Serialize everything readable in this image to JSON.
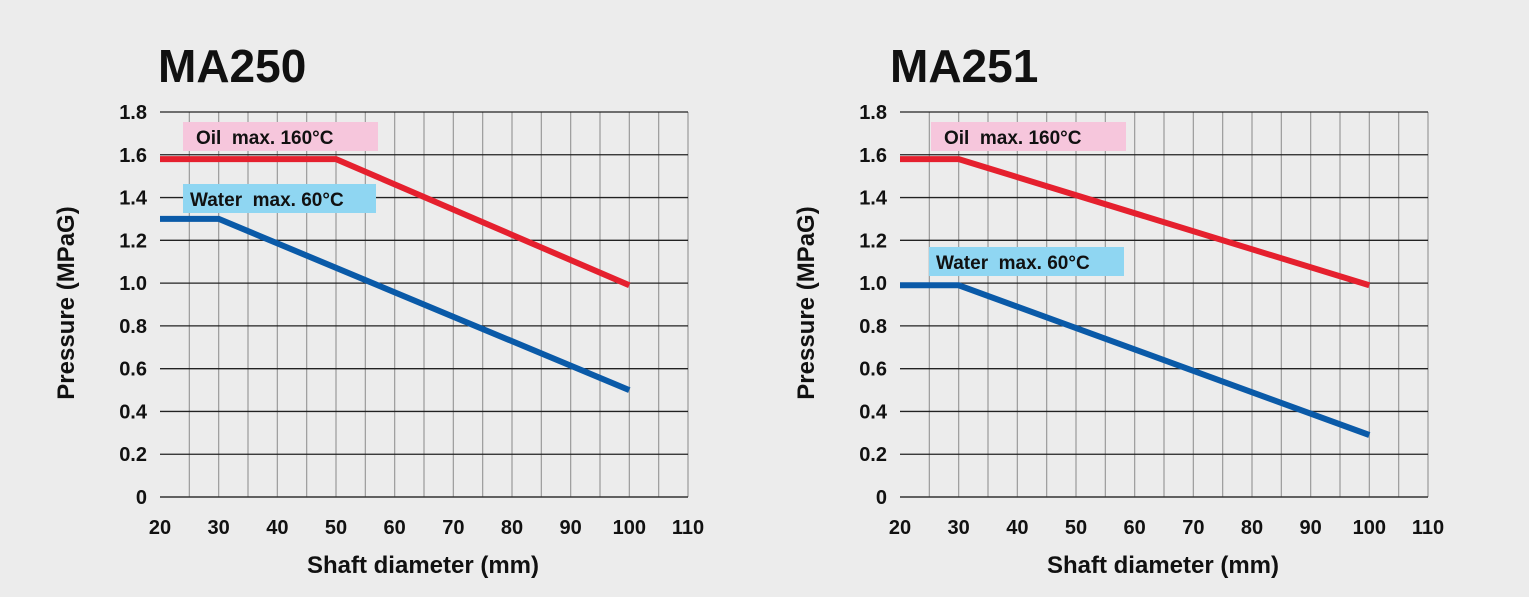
{
  "chart_data": [
    {
      "type": "line",
      "title": "MA250",
      "xlabel": "Shaft diameter (mm)",
      "ylabel": "Pressure (MPaG)",
      "xlim": [
        20,
        110
      ],
      "ylim": [
        0,
        1.8
      ],
      "x_ticks": [
        "20",
        "30",
        "40",
        "50",
        "60",
        "70",
        "80",
        "90",
        "100",
        "110"
      ],
      "y_ticks": [
        "0",
        "0.2",
        "0.4",
        "0.6",
        "0.8",
        "1.0",
        "1.2",
        "1.4",
        "1.6",
        "1.8"
      ],
      "grid": true,
      "series": [
        {
          "name": "Oil  max. 160°C",
          "color": "#e5202e",
          "label_bg": "#f6c6dc",
          "points": [
            [
              20,
              1.58
            ],
            [
              50,
              1.58
            ],
            [
              100,
              0.99
            ]
          ]
        },
        {
          "name": "Water  max. 60°C",
          "color": "#0a5aa8",
          "label_bg": "#8fd6f2",
          "points": [
            [
              20,
              1.3
            ],
            [
              30,
              1.3
            ],
            [
              100,
              0.5
            ]
          ]
        }
      ]
    },
    {
      "type": "line",
      "title": "MA251",
      "xlabel": "Shaft diameter (mm)",
      "ylabel": "Pressure (MPaG)",
      "xlim": [
        20,
        110
      ],
      "ylim": [
        0,
        1.8
      ],
      "x_ticks": [
        "20",
        "30",
        "40",
        "50",
        "60",
        "70",
        "80",
        "90",
        "100",
        "110"
      ],
      "y_ticks": [
        "0",
        "0.2",
        "0.4",
        "0.6",
        "0.8",
        "1.0",
        "1.2",
        "1.4",
        "1.6",
        "1.8"
      ],
      "grid": true,
      "series": [
        {
          "name": "Oil  max. 160°C",
          "color": "#e5202e",
          "label_bg": "#f6c6dc",
          "points": [
            [
              20,
              1.58
            ],
            [
              30,
              1.58
            ],
            [
              100,
              0.99
            ]
          ]
        },
        {
          "name": "Water  max. 60°C",
          "color": "#0a5aa8",
          "label_bg": "#8fd6f2",
          "points": [
            [
              20,
              0.99
            ],
            [
              30,
              0.99
            ],
            [
              100,
              0.29
            ]
          ]
        }
      ]
    }
  ]
}
